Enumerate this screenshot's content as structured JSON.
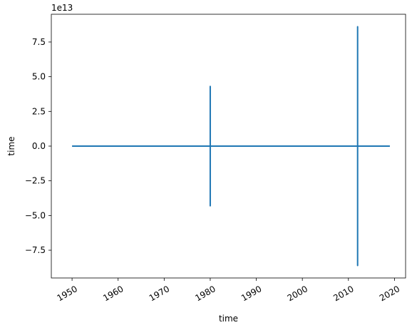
{
  "chart_data": {
    "type": "line",
    "xlabel": "time",
    "ylabel": "time",
    "offset_text": "1e13",
    "xlim": [
      "1945-07-01",
      "2022-06-01"
    ],
    "ylim": [
      -9.5,
      9.5
    ],
    "x_ticks": [
      {
        "value": "1950-01-01",
        "label": "1950"
      },
      {
        "value": "1960-01-01",
        "label": "1960"
      },
      {
        "value": "1970-01-01",
        "label": "1970"
      },
      {
        "value": "1980-01-01",
        "label": "1980"
      },
      {
        "value": "1990-01-01",
        "label": "1990"
      },
      {
        "value": "2000-01-01",
        "label": "2000"
      },
      {
        "value": "2010-01-01",
        "label": "2010"
      },
      {
        "value": "2020-01-01",
        "label": "2020"
      }
    ],
    "y_ticks": [
      {
        "value": 7.5,
        "label": "7.5"
      },
      {
        "value": 5.0,
        "label": "5.0"
      },
      {
        "value": 2.5,
        "label": "2.5"
      },
      {
        "value": 0.0,
        "label": "0.0"
      },
      {
        "value": -2.5,
        "label": "−2.5"
      },
      {
        "value": -5.0,
        "label": "−5.0"
      },
      {
        "value": -7.5,
        "label": "−7.5"
      }
    ],
    "series": [
      {
        "color": "#1f77b4",
        "points": [
          {
            "x": "1950-01-01",
            "y": 0
          },
          {
            "x": "1980-01-01",
            "y": 0
          },
          {
            "x": "1980-01-01",
            "y": 4.3
          },
          {
            "x": "1980-01-01",
            "y": -4.3
          },
          {
            "x": "1980-01-01",
            "y": 0
          },
          {
            "x": "2012-01-01",
            "y": 0
          },
          {
            "x": "2012-01-01",
            "y": 8.6
          },
          {
            "x": "2012-01-01",
            "y": -8.6
          },
          {
            "x": "2012-01-01",
            "y": 0
          },
          {
            "x": "2019-01-01",
            "y": 0
          }
        ]
      }
    ],
    "grid": false,
    "legend": "none"
  }
}
